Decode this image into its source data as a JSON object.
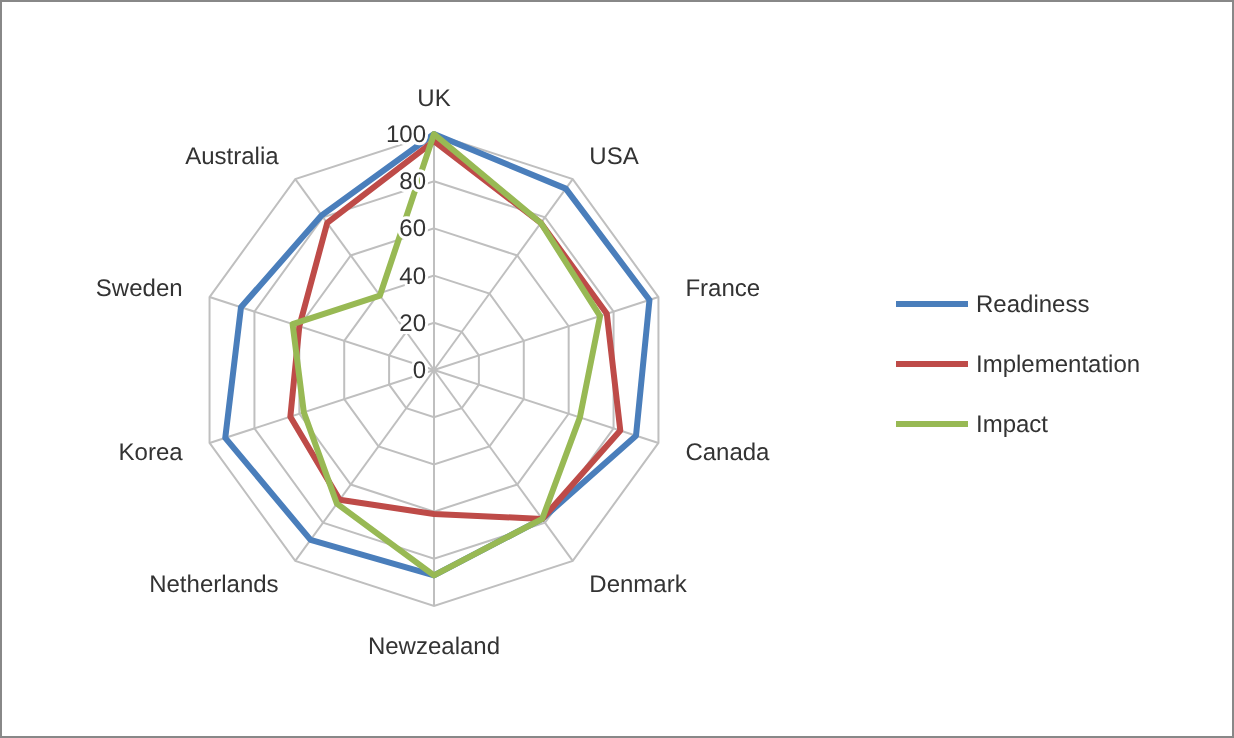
{
  "chart_data": {
    "type": "radar",
    "categories": [
      "UK",
      "USA",
      "France",
      "Canada",
      "Denmark",
      "Newzealand",
      "Netherlands",
      "Korea",
      "Sweden",
      "Australia"
    ],
    "series": [
      {
        "name": "Readiness",
        "color": "#4a7ebb",
        "values": [
          100,
          95,
          96,
          90,
          78,
          87,
          89,
          93,
          86,
          81
        ]
      },
      {
        "name": "Implementation",
        "color": "#be4b48",
        "values": [
          97,
          77,
          77,
          83,
          78,
          61,
          68,
          64,
          60,
          77
        ]
      },
      {
        "name": "Impact",
        "color": "#98b954",
        "values": [
          100,
          77,
          74,
          65,
          78,
          87,
          70,
          58,
          63,
          39
        ]
      }
    ],
    "ylim": [
      0,
      100
    ],
    "yticks": [
      0,
      20,
      40,
      60,
      80,
      100
    ],
    "grid": true,
    "legend": "right"
  }
}
